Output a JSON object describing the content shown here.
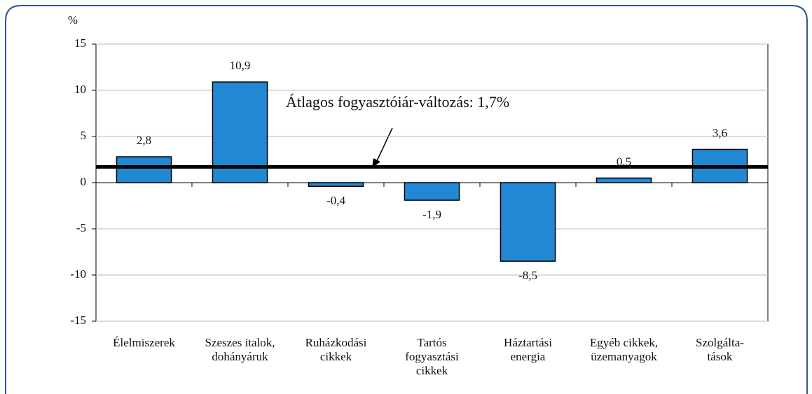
{
  "chart_data": {
    "type": "bar",
    "ylabel": "%",
    "categories": [
      "Élelmiszerek",
      "Szeszes italok,\ndohányáruk",
      "Ruházkodási\ncikkek",
      "Tartós\nfogyasztási\ncikkek",
      "Háztartási\nenergia",
      "Egyéb cikkek,\nüzemanyagok",
      "Szolgálta-\ntások"
    ],
    "values": [
      2.8,
      10.9,
      -0.4,
      -1.9,
      -8.5,
      0.5,
      3.6
    ],
    "value_labels": [
      "2,8",
      "10,9",
      "-0,4",
      "-1,9",
      "-8,5",
      "0,5",
      "3,6"
    ],
    "color": "#2388d4",
    "ylim": [
      -15,
      15
    ],
    "yticks": [
      -15,
      -10,
      -5,
      0,
      5,
      10,
      15
    ],
    "grid": true,
    "reference_line": {
      "value": 1.7,
      "label": "Átlagos fogyasztóiár-változás: 1,7%"
    }
  }
}
